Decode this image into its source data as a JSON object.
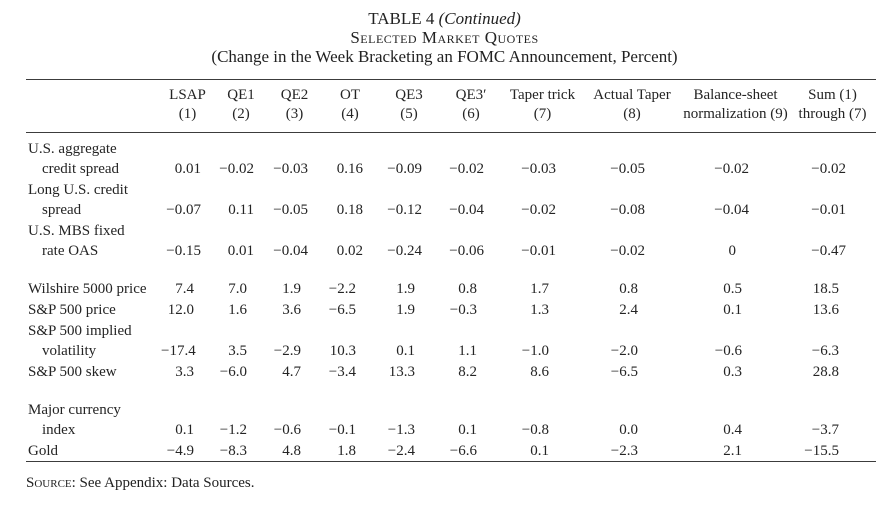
{
  "page": {
    "title1_normal": "TABLE 4 ",
    "title1_italic": "(Continued)",
    "title2": "Selected Market Quotes",
    "title3": "(Change in the Week Bracketing an FOMC Announcement, Percent)"
  },
  "table": {
    "columns": [
      {
        "line1": "LSAP",
        "line2": "(1)"
      },
      {
        "line1": "QE1",
        "line2": "(2)"
      },
      {
        "line1": "QE2",
        "line2": "(3)"
      },
      {
        "line1": "OT",
        "line2": "(4)"
      },
      {
        "line1": "QE3",
        "line2": "(5)"
      },
      {
        "line1": "QE3′",
        "line2": "(6)"
      },
      {
        "line1": "Taper trick",
        "line2": "(7)"
      },
      {
        "line1": "Actual Taper",
        "line2": "(8)"
      },
      {
        "line1": "Balance-sheet",
        "line2": "normalization (9)"
      },
      {
        "line1": "Sum (1)",
        "line2": "through (7)"
      }
    ],
    "rows": [
      {
        "label_line1": "U.S. aggregate",
        "label_line2": "credit spread",
        "values": [
          "0.01",
          "−0.02",
          "−0.03",
          "0.16",
          "−0.09",
          "−0.02",
          "−0.03",
          "−0.05",
          "−0.02",
          "−0.02"
        ]
      },
      {
        "label_line1": "Long U.S. credit",
        "label_line2": "spread",
        "values": [
          "−0.07",
          "0.11",
          "−0.05",
          "0.18",
          "−0.12",
          "−0.04",
          "−0.02",
          "−0.08",
          "−0.04",
          "−0.01"
        ]
      },
      {
        "label_line1": "U.S. MBS fixed",
        "label_line2": "rate OAS",
        "values": [
          "−0.15",
          "0.01",
          "−0.04",
          "0.02",
          "−0.24",
          "−0.06",
          "−0.01",
          "−0.02",
          "0",
          "−0.47"
        ]
      },
      {
        "label_line1": "Wilshire 5000 price",
        "spacer_before": true,
        "values": [
          "7.4",
          "7.0",
          "1.9",
          "−2.2",
          "1.9",
          "0.8",
          "1.7",
          "0.8",
          "0.5",
          "18.5"
        ]
      },
      {
        "label_line1": "S&P 500 price",
        "values": [
          "12.0",
          "1.6",
          "3.6",
          "−6.5",
          "1.9",
          "−0.3",
          "1.3",
          "2.4",
          "0.1",
          "13.6"
        ]
      },
      {
        "label_line1": "S&P 500 implied",
        "label_line2": "volatility",
        "values": [
          "−17.4",
          "3.5",
          "−2.9",
          "10.3",
          "0.1",
          "1.1",
          "−1.0",
          "−2.0",
          "−0.6",
          "−6.3"
        ]
      },
      {
        "label_line1": "S&P 500 skew",
        "values": [
          "3.3",
          "−6.0",
          "4.7",
          "−3.4",
          "13.3",
          "8.2",
          "8.6",
          "−6.5",
          "0.3",
          "28.8"
        ]
      },
      {
        "label_line1": "Major currency",
        "label_line2": "index",
        "spacer_before": true,
        "values": [
          "0.1",
          "−1.2",
          "−0.6",
          "−0.1",
          "−1.3",
          "0.1",
          "−0.8",
          "0.0",
          "0.4",
          "−3.7"
        ]
      },
      {
        "label_line1": "Gold",
        "values": [
          "−4.9",
          "−8.3",
          "4.8",
          "1.8",
          "−2.4",
          "−6.6",
          "0.1",
          "−2.3",
          "2.1",
          "−15.5"
        ]
      }
    ]
  },
  "footer": {
    "source_prefix": "Source",
    "source_rest": ": See Appendix: Data Sources."
  }
}
